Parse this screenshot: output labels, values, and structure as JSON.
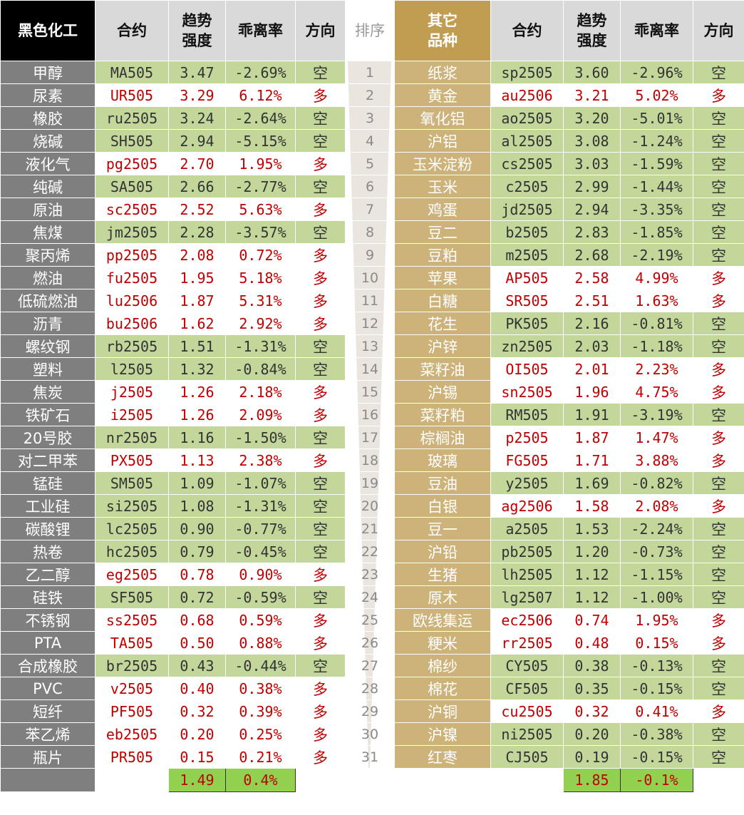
{
  "header": {
    "left": [
      "黑色化工",
      "合约",
      "趋势\n强度",
      "乖离率",
      "方向"
    ],
    "rank": "排序",
    "right": [
      "其它\n品种",
      "合约",
      "趋势\n强度",
      "乖离率",
      "方向"
    ]
  },
  "rows": [
    {
      "rank": "1",
      "left": [
        "甲醇",
        "MA505",
        "3.47",
        "-2.69%",
        "空"
      ],
      "right": [
        "纸浆",
        "sp2505",
        "3.60",
        "-2.96%",
        "空"
      ]
    },
    {
      "rank": "2",
      "left": [
        "尿素",
        "UR505",
        "3.29",
        "6.12%",
        "多"
      ],
      "right": [
        "黄金",
        "au2506",
        "3.21",
        "5.02%",
        "多"
      ]
    },
    {
      "rank": "3",
      "left": [
        "橡胶",
        "ru2505",
        "3.24",
        "-2.64%",
        "空"
      ],
      "right": [
        "氧化铝",
        "ao2505",
        "3.20",
        "-5.01%",
        "空"
      ]
    },
    {
      "rank": "4",
      "left": [
        "烧碱",
        "SH505",
        "2.94",
        "-5.15%",
        "空"
      ],
      "right": [
        "沪铝",
        "al2505",
        "3.08",
        "-1.24%",
        "空"
      ]
    },
    {
      "rank": "5",
      "left": [
        "液化气",
        "pg2505",
        "2.70",
        "1.95%",
        "多"
      ],
      "right": [
        "玉米淀粉",
        "cs2505",
        "3.03",
        "-1.59%",
        "空"
      ]
    },
    {
      "rank": "6",
      "left": [
        "纯碱",
        "SA505",
        "2.66",
        "-2.77%",
        "空"
      ],
      "right": [
        "玉米",
        "c2505",
        "2.99",
        "-1.44%",
        "空"
      ]
    },
    {
      "rank": "7",
      "left": [
        "原油",
        "sc2505",
        "2.52",
        "5.63%",
        "多"
      ],
      "right": [
        "鸡蛋",
        "jd2505",
        "2.94",
        "-3.35%",
        "空"
      ]
    },
    {
      "rank": "8",
      "left": [
        "焦煤",
        "jm2505",
        "2.28",
        "-3.57%",
        "空"
      ],
      "right": [
        "豆二",
        "b2505",
        "2.83",
        "-1.85%",
        "空"
      ]
    },
    {
      "rank": "9",
      "left": [
        "聚丙烯",
        "pp2505",
        "2.08",
        "0.72%",
        "多"
      ],
      "right": [
        "豆粕",
        "m2505",
        "2.68",
        "-2.19%",
        "空"
      ]
    },
    {
      "rank": "10",
      "left": [
        "燃油",
        "fu2505",
        "1.95",
        "5.18%",
        "多"
      ],
      "right": [
        "苹果",
        "AP505",
        "2.58",
        "4.99%",
        "多"
      ]
    },
    {
      "rank": "11",
      "left": [
        "低硫燃油",
        "lu2506",
        "1.87",
        "5.31%",
        "多"
      ],
      "right": [
        "白糖",
        "SR505",
        "2.51",
        "1.63%",
        "多"
      ]
    },
    {
      "rank": "12",
      "left": [
        "沥青",
        "bu2506",
        "1.62",
        "2.92%",
        "多"
      ],
      "right": [
        "花生",
        "PK505",
        "2.16",
        "-0.81%",
        "空"
      ]
    },
    {
      "rank": "13",
      "left": [
        "螺纹钢",
        "rb2505",
        "1.51",
        "-1.31%",
        "空"
      ],
      "right": [
        "沪锌",
        "zn2505",
        "2.03",
        "-1.18%",
        "空"
      ]
    },
    {
      "rank": "14",
      "left": [
        "塑料",
        "l2505",
        "1.32",
        "-0.84%",
        "空"
      ],
      "right": [
        "菜籽油",
        "OI505",
        "2.01",
        "2.23%",
        "多"
      ]
    },
    {
      "rank": "15",
      "left": [
        "焦炭",
        "j2505",
        "1.26",
        "2.18%",
        "多"
      ],
      "right": [
        "沪锡",
        "sn2505",
        "1.96",
        "4.75%",
        "多"
      ]
    },
    {
      "rank": "16",
      "left": [
        "铁矿石",
        "i2505",
        "1.26",
        "2.09%",
        "多"
      ],
      "right": [
        "菜籽粕",
        "RM505",
        "1.91",
        "-3.19%",
        "空"
      ]
    },
    {
      "rank": "17",
      "left": [
        "20号胶",
        "nr2505",
        "1.16",
        "-1.50%",
        "空"
      ],
      "right": [
        "棕榈油",
        "p2505",
        "1.87",
        "1.47%",
        "多"
      ]
    },
    {
      "rank": "18",
      "left": [
        "对二甲苯",
        "PX505",
        "1.13",
        "2.38%",
        "多"
      ],
      "right": [
        "玻璃",
        "FG505",
        "1.71",
        "3.88%",
        "多"
      ]
    },
    {
      "rank": "19",
      "left": [
        "锰硅",
        "SM505",
        "1.09",
        "-1.07%",
        "空"
      ],
      "right": [
        "豆油",
        "y2505",
        "1.69",
        "-0.82%",
        "空"
      ]
    },
    {
      "rank": "20",
      "left": [
        "工业硅",
        "si2505",
        "1.08",
        "-1.31%",
        "空"
      ],
      "right": [
        "白银",
        "ag2506",
        "1.58",
        "2.08%",
        "多"
      ]
    },
    {
      "rank": "21",
      "left": [
        "碳酸锂",
        "lc2505",
        "0.90",
        "-0.77%",
        "空"
      ],
      "right": [
        "豆一",
        "a2505",
        "1.53",
        "-2.24%",
        "空"
      ]
    },
    {
      "rank": "22",
      "left": [
        "热卷",
        "hc2505",
        "0.79",
        "-0.45%",
        "空"
      ],
      "right": [
        "沪铅",
        "pb2505",
        "1.20",
        "-0.73%",
        "空"
      ]
    },
    {
      "rank": "23",
      "left": [
        "乙二醇",
        "eg2505",
        "0.78",
        "0.90%",
        "多"
      ],
      "right": [
        "生猪",
        "lh2505",
        "1.12",
        "-1.15%",
        "空"
      ]
    },
    {
      "rank": "24",
      "left": [
        "硅铁",
        "SF505",
        "0.72",
        "-0.59%",
        "空"
      ],
      "right": [
        "原木",
        "lg2507",
        "1.12",
        "-1.00%",
        "空"
      ]
    },
    {
      "rank": "25",
      "left": [
        "不锈钢",
        "ss2505",
        "0.68",
        "0.59%",
        "多"
      ],
      "right": [
        "欧线集运",
        "ec2506",
        "0.74",
        "1.95%",
        "多"
      ]
    },
    {
      "rank": "26",
      "left": [
        "PTA",
        "TA505",
        "0.50",
        "0.88%",
        "多"
      ],
      "right": [
        "粳米",
        "rr2505",
        "0.48",
        "0.15%",
        "多"
      ]
    },
    {
      "rank": "27",
      "left": [
        "合成橡胶",
        "br2505",
        "0.43",
        "-0.44%",
        "空"
      ],
      "right": [
        "棉纱",
        "CY505",
        "0.38",
        "-0.13%",
        "空"
      ]
    },
    {
      "rank": "28",
      "left": [
        "PVC",
        "v2505",
        "0.40",
        "0.38%",
        "多"
      ],
      "right": [
        "棉花",
        "CF505",
        "0.35",
        "-0.15%",
        "空"
      ]
    },
    {
      "rank": "29",
      "left": [
        "短纤",
        "PF505",
        "0.32",
        "0.39%",
        "多"
      ],
      "right": [
        "沪铜",
        "cu2505",
        "0.32",
        "0.41%",
        "多"
      ]
    },
    {
      "rank": "30",
      "left": [
        "苯乙烯",
        "eb2505",
        "0.20",
        "0.25%",
        "多"
      ],
      "right": [
        "沪镍",
        "ni2505",
        "0.20",
        "-0.38%",
        "空"
      ]
    },
    {
      "rank": "31",
      "left": [
        "瓶片",
        "PR505",
        "0.15",
        "0.21%",
        "多"
      ],
      "right": [
        "红枣",
        "CJ505",
        "0.19",
        "-0.15%",
        "空"
      ]
    }
  ],
  "footer": {
    "left": [
      "1.49",
      "0.4%"
    ],
    "right": [
      "1.85",
      "-0.1%"
    ]
  }
}
